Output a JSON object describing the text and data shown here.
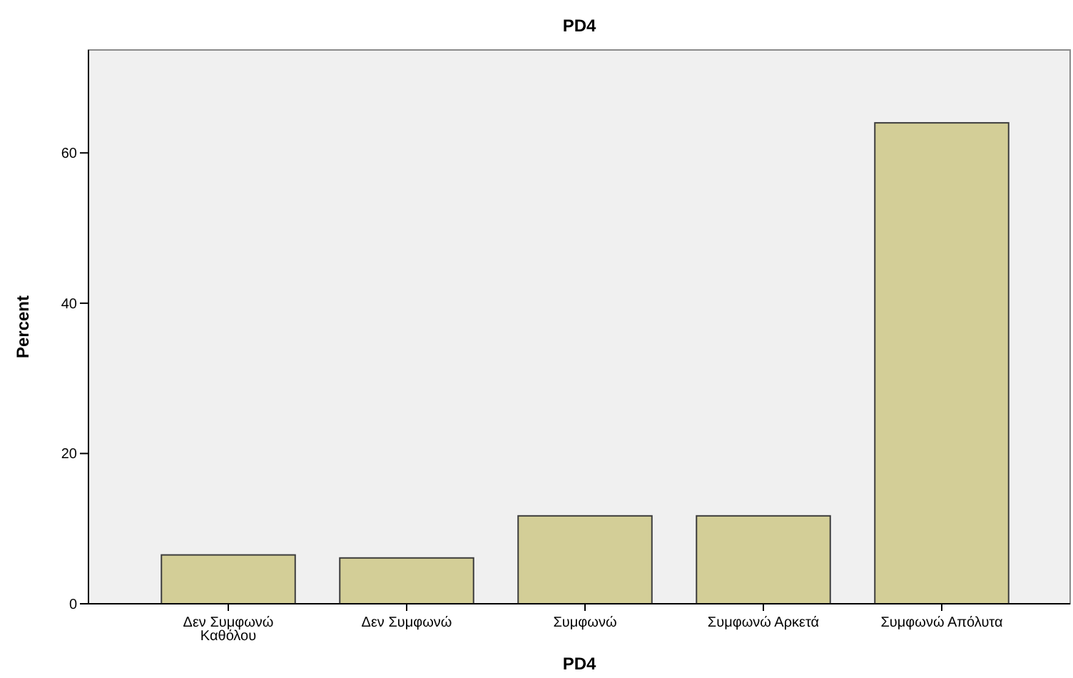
{
  "chart_data": {
    "type": "bar",
    "title": "PD4",
    "xlabel": "PD4",
    "ylabel": "Percent",
    "categories": [
      "Δεν Συμφωνώ Καθόλου",
      "Δεν Συμφωνώ",
      "Συμφωνώ",
      "Συμφωνώ Αρκετά",
      "Συμφωνώ Απόλυτα"
    ],
    "values": [
      6.5,
      6.1,
      11.7,
      11.7,
      64.0
    ],
    "color": "#d3ce97",
    "ylim": [
      0,
      73.7
    ],
    "yticks": [
      0,
      20,
      40,
      60
    ],
    "grid": false
  }
}
